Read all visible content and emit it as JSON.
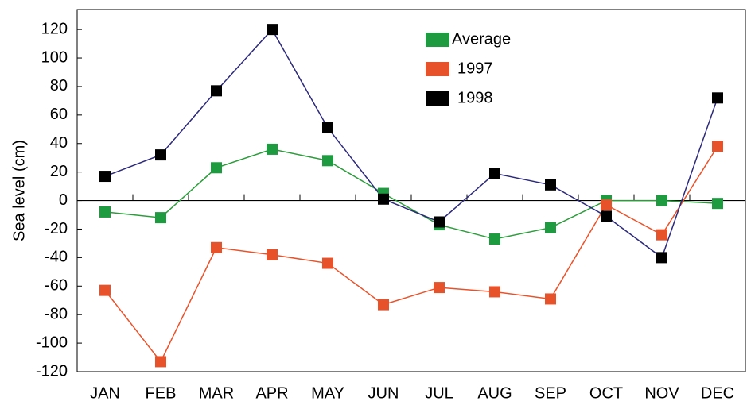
{
  "chart_data": {
    "type": "line",
    "y_label": "Sea level (cm)",
    "categories": [
      "JAN",
      "FEB",
      "MAR",
      "APR",
      "MAY",
      "JUN",
      "JUL",
      "AUG",
      "SEP",
      "OCT",
      "NOV",
      "DEC"
    ],
    "series": [
      {
        "name": "Average",
        "color": "#1e9a40",
        "line_color": "#2a9d3a",
        "values": [
          -8,
          -12,
          23,
          36,
          28,
          5,
          -17,
          -27,
          -19,
          0,
          0,
          -2
        ]
      },
      {
        "name": "1997",
        "color": "#e8522a",
        "line_color": "#e8522a",
        "values": [
          -63,
          -113,
          -33,
          -38,
          -44,
          -73,
          -61,
          -64,
          -69,
          -3,
          -24,
          38
        ]
      },
      {
        "name": "1998",
        "color": "#000000",
        "line_color": "#2c2a7a",
        "values": [
          17,
          32,
          77,
          120,
          51,
          1,
          -15,
          19,
          11,
          -11,
          -40,
          72
        ]
      }
    ],
    "ylim": [
      -120,
      134
    ],
    "yticks": [
      -120,
      -100,
      -80,
      -60,
      -40,
      -20,
      0,
      20,
      40,
      60,
      80,
      100,
      120
    ],
    "legend": "top-center",
    "zero_line": true
  }
}
